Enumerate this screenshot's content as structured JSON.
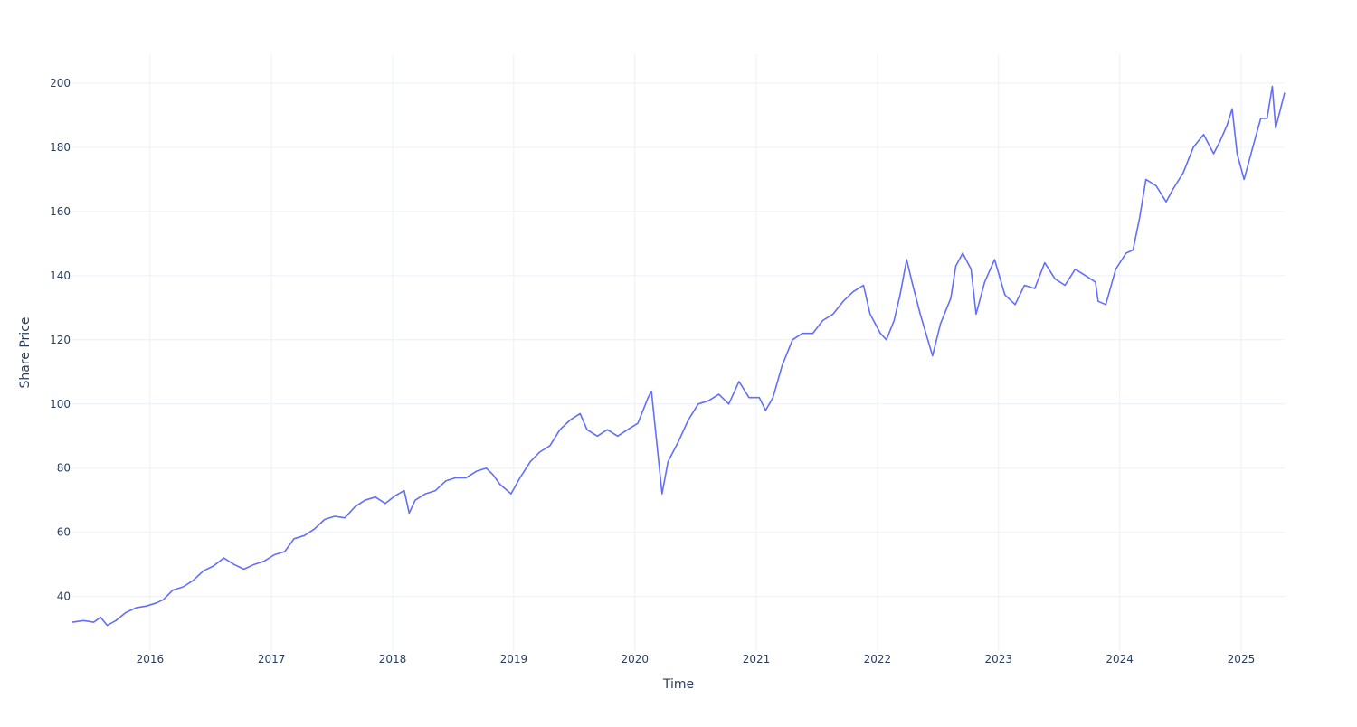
{
  "chart_data": {
    "type": "line",
    "xlabel": "Time",
    "ylabel": "Share Price",
    "xlim": [
      "2015-05-12",
      "2025-05-12"
    ],
    "ylim": [
      23,
      209
    ],
    "x_ticks": [
      "2016",
      "2017",
      "2018",
      "2019",
      "2020",
      "2021",
      "2022",
      "2023",
      "2024",
      "2025"
    ],
    "y_ticks": [
      40,
      60,
      80,
      100,
      120,
      140,
      160,
      180,
      200
    ],
    "grid": true,
    "colors": {
      "line": "#636efa",
      "grid": "#ebf0f8",
      "text": "#2a3f5f",
      "background": "#ffffff"
    },
    "series": [
      {
        "x": [
          "2015-05-12",
          "2015-06-15",
          "2015-07-15",
          "2015-08-05",
          "2015-08-25",
          "2015-09-20",
          "2015-10-20",
          "2015-11-20",
          "2015-12-20",
          "2016-01-20",
          "2016-02-10",
          "2016-03-10",
          "2016-04-10",
          "2016-05-10",
          "2016-06-10",
          "2016-07-10",
          "2016-08-10",
          "2016-09-10",
          "2016-10-10",
          "2016-11-10",
          "2016-12-10",
          "2017-01-10",
          "2017-02-10",
          "2017-03-10",
          "2017-04-10",
          "2017-05-10",
          "2017-06-10",
          "2017-07-10",
          "2017-08-10",
          "2017-09-10",
          "2017-10-10",
          "2017-11-10",
          "2017-12-10",
          "2018-01-10",
          "2018-02-05",
          "2018-02-20",
          "2018-03-10",
          "2018-04-10",
          "2018-05-10",
          "2018-06-10",
          "2018-07-10",
          "2018-08-10",
          "2018-09-10",
          "2018-10-10",
          "2018-10-30",
          "2018-11-20",
          "2018-12-24",
          "2019-01-20",
          "2019-02-20",
          "2019-03-20",
          "2019-04-20",
          "2019-05-20",
          "2019-06-20",
          "2019-07-20",
          "2019-08-10",
          "2019-09-10",
          "2019-10-10",
          "2019-11-10",
          "2019-12-10",
          "2020-01-10",
          "2020-02-10",
          "2020-02-20",
          "2020-03-05",
          "2020-03-23",
          "2020-04-10",
          "2020-05-10",
          "2020-06-10",
          "2020-07-10",
          "2020-08-10",
          "2020-09-10",
          "2020-10-10",
          "2020-11-10",
          "2020-12-10",
          "2021-01-10",
          "2021-01-29",
          "2021-02-20",
          "2021-03-20",
          "2021-04-20",
          "2021-05-20",
          "2021-06-20",
          "2021-07-20",
          "2021-08-20",
          "2021-09-20",
          "2021-10-20",
          "2021-11-20",
          "2021-12-10",
          "2022-01-10",
          "2022-01-28",
          "2022-02-20",
          "2022-03-10",
          "2022-03-30",
          "2022-04-15",
          "2022-05-10",
          "2022-06-16",
          "2022-07-10",
          "2022-08-10",
          "2022-08-25",
          "2022-09-15",
          "2022-10-10",
          "2022-10-25",
          "2022-11-20",
          "2022-12-20",
          "2023-01-20",
          "2023-02-20",
          "2023-03-20",
          "2023-04-20",
          "2023-05-20",
          "2023-06-20",
          "2023-07-20",
          "2023-08-20",
          "2023-09-20",
          "2023-10-20",
          "2023-10-28",
          "2023-11-20",
          "2023-12-20",
          "2024-01-20",
          "2024-02-10",
          "2024-03-01",
          "2024-03-20",
          "2024-04-20",
          "2024-05-20",
          "2024-06-10",
          "2024-07-10",
          "2024-08-10",
          "2024-09-10",
          "2024-10-10",
          "2024-10-30",
          "2024-11-20",
          "2024-12-05",
          "2024-12-20",
          "2025-01-10",
          "2025-02-05",
          "2025-03-01",
          "2025-03-20",
          "2025-04-05",
          "2025-04-15",
          "2025-05-12"
        ],
        "y": [
          32,
          32.5,
          32,
          33.5,
          31,
          32.5,
          35,
          36.5,
          37,
          38,
          39,
          42,
          43,
          45,
          48,
          49.5,
          52,
          50,
          48.5,
          50,
          51,
          53,
          54,
          58,
          59,
          61,
          64,
          65,
          64.5,
          68,
          70,
          71,
          69,
          71.5,
          73,
          66,
          70,
          72,
          73,
          76,
          77,
          77,
          79,
          80,
          78,
          75,
          72,
          77,
          82,
          85,
          87,
          92,
          95,
          97,
          92,
          90,
          92,
          90,
          92,
          94,
          102,
          104,
          90,
          72,
          82,
          88,
          95,
          100,
          101,
          103,
          100,
          107,
          102,
          102,
          98,
          102,
          112,
          120,
          122,
          122,
          126,
          128,
          132,
          135,
          137,
          128,
          122,
          120,
          126,
          134,
          145,
          138,
          128,
          115,
          125,
          133,
          143,
          147,
          142,
          128,
          138,
          145,
          134,
          131,
          137,
          136,
          144,
          139,
          137,
          142,
          140,
          138,
          132,
          131,
          142,
          147,
          148,
          158,
          170,
          168,
          163,
          167,
          172,
          180,
          184,
          178,
          182,
          187,
          192,
          178,
          170,
          180,
          189,
          189,
          199,
          186,
          197
        ]
      }
    ]
  }
}
